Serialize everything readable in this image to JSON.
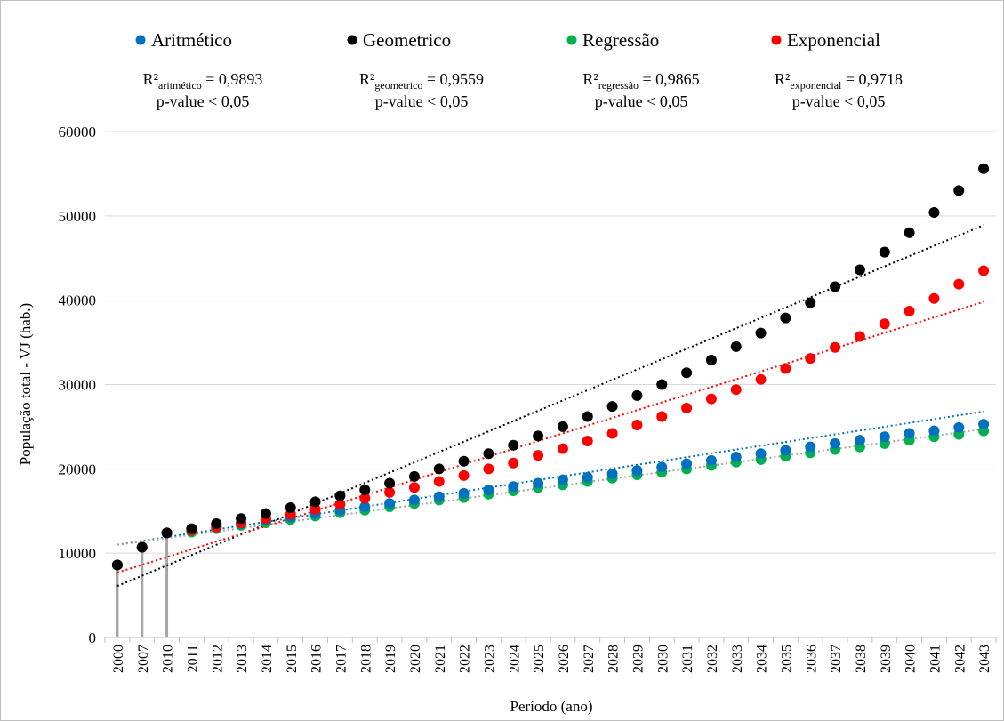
{
  "chart_data": {
    "type": "scatter",
    "xlabel": "Período (ano)",
    "ylabel": "População total - VJ (hab.)",
    "ylim": [
      0,
      60000
    ],
    "yticks": [
      "0",
      "10000",
      "20000",
      "30000",
      "40000",
      "50000",
      "60000"
    ],
    "categories": [
      "2000",
      "2007",
      "2010",
      "2011",
      "2012",
      "2013",
      "2014",
      "2015",
      "2016",
      "2017",
      "2018",
      "2019",
      "2020",
      "2021",
      "2022",
      "2023",
      "2024",
      "2025",
      "2026",
      "2027",
      "2028",
      "2029",
      "2030",
      "2031",
      "2032",
      "2033",
      "2034",
      "2035",
      "2036",
      "2037",
      "2038",
      "2039",
      "2040",
      "2041",
      "2042",
      "2043"
    ],
    "grid": "horizontal",
    "legend_position": "top",
    "observed": [
      8600,
      10700,
      12400
    ],
    "series": [
      {
        "name": "Aritmético",
        "color": "#0070c0",
        "values": [
          8600,
          10700,
          12400,
          12800,
          13200,
          13500,
          13900,
          14300,
          14700,
          15100,
          15500,
          15900,
          16300,
          16700,
          17100,
          17500,
          17900,
          18300,
          18700,
          19000,
          19400,
          19800,
          20200,
          20600,
          21000,
          21400,
          21800,
          22200,
          22600,
          23000,
          23400,
          23800,
          24200,
          24500,
          24900,
          25300
        ],
        "trendline": [
          11000,
          26800
        ],
        "trendline_color": "#0070c0",
        "stat_label": "R²",
        "stat_subscript": "aritmético",
        "stat_value": "= 0,9893",
        "pvalue": "p-value < 0,05"
      },
      {
        "name": "Geometrico",
        "color": "#000000",
        "values": [
          8600,
          10700,
          12400,
          12900,
          13500,
          14100,
          14700,
          15400,
          16100,
          16800,
          17500,
          18300,
          19100,
          20000,
          20900,
          21800,
          22800,
          23900,
          25000,
          26200,
          27400,
          28700,
          30000,
          31400,
          32900,
          34500,
          36100,
          37900,
          39700,
          41600,
          43600,
          45700,
          48000,
          50400,
          53000,
          55600
        ],
        "trendline": [
          6100,
          48900
        ],
        "trendline_color": "#000000",
        "stat_label": "R²",
        "stat_subscript": "geometrico",
        "stat_value": "= 0,9559",
        "pvalue": "p-value < 0,05"
      },
      {
        "name": "Regressão",
        "color": "#00b050",
        "values": [
          8600,
          10700,
          12400,
          12500,
          12900,
          13300,
          13600,
          14000,
          14400,
          14800,
          15100,
          15500,
          15900,
          16300,
          16600,
          17000,
          17400,
          17800,
          18100,
          18500,
          18900,
          19300,
          19600,
          20000,
          20400,
          20800,
          21100,
          21500,
          21900,
          22300,
          22600,
          23000,
          23400,
          23800,
          24100,
          24500
        ],
        "trendline": [
          11000,
          24700
        ],
        "trendline_color": "#a5a5a5",
        "stat_label": "R²",
        "stat_subscript": "regressão",
        "stat_value": "= 0,9865",
        "pvalue": "p-value < 0,05"
      },
      {
        "name": "Exponencial",
        "color": "#ff0000",
        "values": [
          8600,
          10700,
          12400,
          12700,
          13100,
          13600,
          14100,
          14600,
          15200,
          15800,
          16500,
          17200,
          17800,
          18500,
          19200,
          20000,
          20700,
          21600,
          22400,
          23300,
          24200,
          25200,
          26200,
          27200,
          28300,
          29400,
          30600,
          31900,
          33100,
          34400,
          35700,
          37200,
          38700,
          40200,
          41900,
          43500
        ],
        "trendline": [
          7700,
          39800
        ],
        "trendline_color": "#ff0000",
        "stat_label": "R²",
        "stat_subscript": "exponencial",
        "stat_value": "= 0,9718",
        "pvalue": "p-value < 0,05"
      }
    ]
  }
}
